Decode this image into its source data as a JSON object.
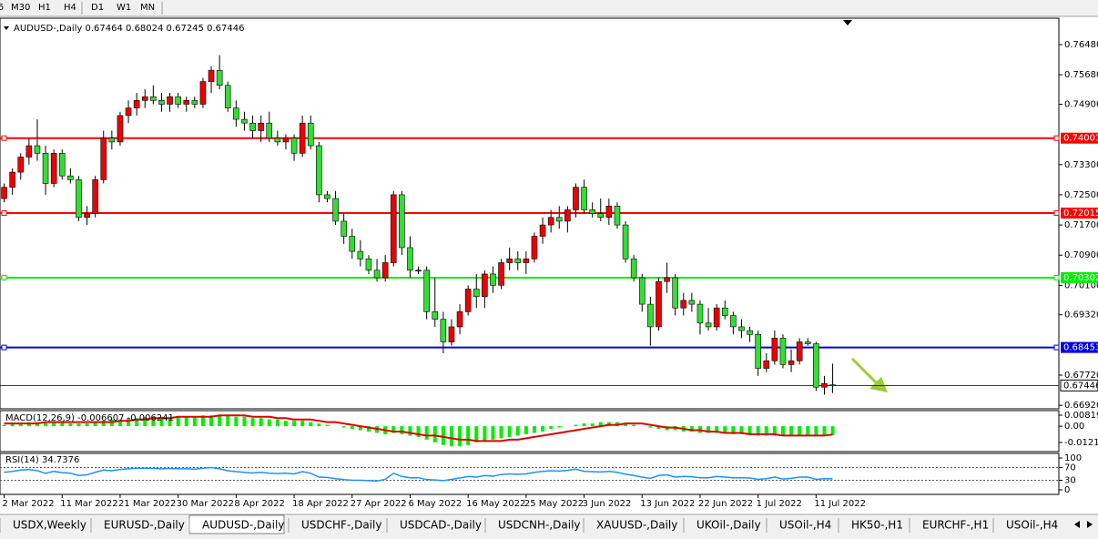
{
  "toolbar": {
    "timeframes": [
      "5",
      "M30",
      "H1",
      "H4",
      "D1",
      "W1",
      "MN"
    ]
  },
  "chart_data": [
    {
      "type": "candlestick",
      "title": "AUDUSD-,Daily  0.67464 0.68024 0.67245 0.67446",
      "up_color": "#ee0000",
      "down_color": "#33dd33",
      "xlim": [
        -0.5,
        127.3
      ],
      "xticks": [
        {
          "value": 0,
          "label": "2 Mar 2022"
        },
        {
          "value": 7,
          "label": "11 Mar 2022"
        },
        {
          "value": 14,
          "label": "21 Mar 2022"
        },
        {
          "value": 21,
          "label": "30 Mar 2022"
        },
        {
          "value": 28,
          "label": "8 Apr 2022"
        },
        {
          "value": 35,
          "label": "18 Apr 2022"
        },
        {
          "value": 42,
          "label": "27 Apr 2022"
        },
        {
          "value": 49,
          "label": "6 May 2022"
        },
        {
          "value": 56,
          "label": "16 May 2022"
        },
        {
          "value": 63,
          "label": "25 May 2022"
        },
        {
          "value": 70,
          "label": "3 Jun 2022"
        },
        {
          "value": 77,
          "label": "13 Jun 2022"
        },
        {
          "value": 84,
          "label": "22 Jun 2022"
        },
        {
          "value": 91,
          "label": "1 Jul 2022"
        },
        {
          "value": 98,
          "label": "11 Jul 2022"
        }
      ],
      "ylim": [
        0.66827,
        0.7718
      ],
      "yticks": [
        {
          "value": 0.7648,
          "label": "0.76480"
        },
        {
          "value": 0.7568,
          "label": "0.75680"
        },
        {
          "value": 0.749,
          "label": "0.74900"
        },
        {
          "value": 0.733,
          "label": "0.73300"
        },
        {
          "value": 0.725,
          "label": "0.72500"
        },
        {
          "value": 0.717,
          "label": "0.71700"
        },
        {
          "value": 0.709,
          "label": "0.70900"
        },
        {
          "value": 0.701,
          "label": "0.70100"
        },
        {
          "value": 0.6932,
          "label": "0.69320"
        },
        {
          "value": 0.6772,
          "label": "0.67720"
        },
        {
          "value": 0.6692,
          "label": "0.66920"
        }
      ],
      "levels": [
        {
          "value": 0.74001,
          "color": "#ff0000"
        },
        {
          "value": 0.72015,
          "color": "#ff0000"
        },
        {
          "value": 0.70302,
          "color": "#00ee00"
        },
        {
          "value": 0.68453,
          "color": "#0000dd"
        }
      ],
      "last_price": 0.67446,
      "candles": [
        [
          0.724,
          0.728,
          0.723,
          0.727
        ],
        [
          0.727,
          0.732,
          0.725,
          0.731
        ],
        [
          0.731,
          0.736,
          0.729,
          0.735
        ],
        [
          0.735,
          0.74,
          0.733,
          0.738
        ],
        [
          0.738,
          0.745,
          0.734,
          0.736
        ],
        [
          0.736,
          0.738,
          0.725,
          0.728
        ],
        [
          0.728,
          0.737,
          0.727,
          0.736
        ],
        [
          0.736,
          0.737,
          0.729,
          0.73
        ],
        [
          0.73,
          0.732,
          0.728,
          0.729
        ],
        [
          0.729,
          0.73,
          0.718,
          0.719
        ],
        [
          0.719,
          0.722,
          0.717,
          0.72
        ],
        [
          0.72,
          0.73,
          0.719,
          0.729
        ],
        [
          0.729,
          0.742,
          0.728,
          0.74
        ],
        [
          0.74,
          0.742,
          0.737,
          0.739
        ],
        [
          0.739,
          0.747,
          0.738,
          0.746
        ],
        [
          0.746,
          0.75,
          0.744,
          0.748
        ],
        [
          0.748,
          0.752,
          0.746,
          0.75
        ],
        [
          0.75,
          0.753,
          0.748,
          0.751
        ],
        [
          0.751,
          0.754,
          0.749,
          0.75
        ],
        [
          0.75,
          0.752,
          0.747,
          0.749
        ],
        [
          0.749,
          0.752,
          0.747,
          0.751
        ],
        [
          0.751,
          0.752,
          0.748,
          0.749
        ],
        [
          0.749,
          0.751,
          0.747,
          0.75
        ],
        [
          0.75,
          0.751,
          0.748,
          0.749
        ],
        [
          0.749,
          0.756,
          0.748,
          0.755
        ],
        [
          0.755,
          0.759,
          0.752,
          0.758
        ],
        [
          0.758,
          0.762,
          0.753,
          0.754
        ],
        [
          0.754,
          0.755,
          0.747,
          0.748
        ],
        [
          0.748,
          0.75,
          0.743,
          0.745
        ],
        [
          0.745,
          0.747,
          0.742,
          0.744
        ],
        [
          0.744,
          0.746,
          0.74,
          0.742
        ],
        [
          0.742,
          0.746,
          0.739,
          0.744
        ],
        [
          0.744,
          0.747,
          0.739,
          0.74
        ],
        [
          0.74,
          0.742,
          0.738,
          0.739
        ],
        [
          0.739,
          0.741,
          0.737,
          0.74
        ],
        [
          0.74,
          0.741,
          0.734,
          0.736
        ],
        [
          0.736,
          0.746,
          0.735,
          0.744
        ],
        [
          0.744,
          0.746,
          0.737,
          0.738
        ],
        [
          0.738,
          0.739,
          0.723,
          0.725
        ],
        [
          0.725,
          0.726,
          0.723,
          0.724
        ],
        [
          0.724,
          0.726,
          0.717,
          0.718
        ],
        [
          0.718,
          0.72,
          0.712,
          0.714
        ],
        [
          0.714,
          0.716,
          0.708,
          0.71
        ],
        [
          0.71,
          0.713,
          0.706,
          0.708
        ],
        [
          0.708,
          0.709,
          0.704,
          0.705
        ],
        [
          0.705,
          0.708,
          0.702,
          0.703
        ],
        [
          0.703,
          0.709,
          0.702,
          0.707
        ],
        [
          0.707,
          0.726,
          0.706,
          0.725
        ],
        [
          0.725,
          0.726,
          0.709,
          0.711
        ],
        [
          0.711,
          0.714,
          0.703,
          0.705
        ],
        [
          0.705,
          0.706,
          0.704,
          0.705
        ],
        [
          0.705,
          0.706,
          0.692,
          0.694
        ],
        [
          0.694,
          0.703,
          0.69,
          0.692
        ],
        [
          0.692,
          0.694,
          0.683,
          0.686
        ],
        [
          0.686,
          0.692,
          0.685,
          0.69
        ],
        [
          0.69,
          0.696,
          0.688,
          0.694
        ],
        [
          0.694,
          0.701,
          0.693,
          0.7
        ],
        [
          0.7,
          0.704,
          0.695,
          0.698
        ],
        [
          0.698,
          0.705,
          0.695,
          0.704
        ],
        [
          0.704,
          0.706,
          0.699,
          0.701
        ],
        [
          0.701,
          0.708,
          0.7,
          0.707
        ],
        [
          0.707,
          0.711,
          0.705,
          0.708
        ],
        [
          0.708,
          0.71,
          0.705,
          0.707
        ],
        [
          0.707,
          0.71,
          0.704,
          0.708
        ],
        [
          0.708,
          0.715,
          0.707,
          0.714
        ],
        [
          0.714,
          0.719,
          0.712,
          0.717
        ],
        [
          0.717,
          0.721,
          0.715,
          0.719
        ],
        [
          0.719,
          0.722,
          0.716,
          0.718
        ],
        [
          0.718,
          0.722,
          0.715,
          0.721
        ],
        [
          0.721,
          0.728,
          0.719,
          0.727
        ],
        [
          0.727,
          0.729,
          0.72,
          0.721
        ],
        [
          0.721,
          0.723,
          0.719,
          0.72
        ],
        [
          0.72,
          0.724,
          0.718,
          0.719
        ],
        [
          0.719,
          0.724,
          0.717,
          0.722
        ],
        [
          0.722,
          0.723,
          0.716,
          0.717
        ],
        [
          0.717,
          0.718,
          0.707,
          0.708
        ],
        [
          0.708,
          0.709,
          0.702,
          0.703
        ],
        [
          0.703,
          0.704,
          0.694,
          0.696
        ],
        [
          0.696,
          0.698,
          0.685,
          0.69
        ],
        [
          0.69,
          0.703,
          0.689,
          0.702
        ],
        [
          0.702,
          0.707,
          0.699,
          0.703
        ],
        [
          0.703,
          0.704,
          0.693,
          0.695
        ],
        [
          0.695,
          0.699,
          0.693,
          0.697
        ],
        [
          0.697,
          0.699,
          0.694,
          0.696
        ],
        [
          0.696,
          0.697,
          0.688,
          0.691
        ],
        [
          0.691,
          0.695,
          0.689,
          0.69
        ],
        [
          0.69,
          0.696,
          0.689,
          0.695
        ],
        [
          0.695,
          0.697,
          0.692,
          0.693
        ],
        [
          0.693,
          0.694,
          0.688,
          0.69
        ],
        [
          0.69,
          0.692,
          0.687,
          0.689
        ],
        [
          0.689,
          0.69,
          0.686,
          0.688
        ],
        [
          0.688,
          0.689,
          0.677,
          0.679
        ],
        [
          0.679,
          0.683,
          0.678,
          0.681
        ],
        [
          0.681,
          0.689,
          0.68,
          0.687
        ],
        [
          0.687,
          0.688,
          0.679,
          0.68
        ],
        [
          0.68,
          0.684,
          0.678,
          0.681
        ],
        [
          0.681,
          0.687,
          0.68,
          0.686
        ],
        [
          0.686,
          0.687,
          0.685,
          0.6855
        ],
        [
          0.6855,
          0.686,
          0.673,
          0.674
        ],
        [
          0.674,
          0.677,
          0.672,
          0.675
        ],
        [
          0.67464,
          0.68024,
          0.67245,
          0.67446
        ]
      ]
    },
    {
      "type": "macd",
      "title": "MACD(12,26,9) -0.006607 -0.006241",
      "color": "#00ee00",
      "signal_color": "#dd0000",
      "ylim": [
        -0.0189,
        0.01158
      ],
      "yticks": [
        0.00819,
        {
          "value": 0,
          "label": "0.00"
        },
        -0.01212
      ],
      "values": [
        0.001,
        0.002,
        0.002,
        0.003,
        0.003,
        0.003,
        0.003,
        0.003,
        0.002,
        0.002,
        0.002,
        0.003,
        0.004,
        0.005,
        0.005,
        0.006,
        0.006,
        0.007,
        0.007,
        0.007,
        0.007,
        0.007,
        0.007,
        0.007,
        0.008,
        0.008,
        0.008,
        0.008,
        0.007,
        0.007,
        0.006,
        0.006,
        0.005,
        0.005,
        0.004,
        0.004,
        0.004,
        0.003,
        0.002,
        0.001,
        0,
        -0.001,
        -0.002,
        -0.003,
        -0.004,
        -0.005,
        -0.006,
        -0.005,
        -0.006,
        -0.007,
        -0.008,
        -0.01,
        -0.012,
        -0.014,
        -0.015,
        -0.015,
        -0.014,
        -0.012,
        -0.011,
        -0.01,
        -0.009,
        -0.008,
        -0.007,
        -0.006,
        -0.005,
        -0.004,
        -0.002,
        -0.001,
        0,
        0.001,
        0.002,
        0.002,
        0.003,
        0.003,
        0.003,
        0.002,
        0.001,
        0,
        -0.001,
        -0.002,
        -0.003,
        -0.003,
        -0.004,
        -0.004,
        -0.005,
        -0.005,
        -0.005,
        -0.005,
        -0.006,
        -0.006,
        -0.006,
        -0.007,
        -0.007,
        -0.007,
        -0.007,
        -0.007,
        -0.007,
        -0.007,
        -0.007,
        -0.007,
        -0.006607
      ],
      "signal": [
        0.002,
        0.002,
        0.002,
        0.002,
        0.002,
        0.003,
        0.003,
        0.003,
        0.003,
        0.003,
        0.003,
        0.003,
        0.003,
        0.003,
        0.004,
        0.004,
        0.005,
        0.005,
        0.006,
        0.006,
        0.006,
        0.007,
        0.007,
        0.007,
        0.007,
        0.007,
        0.008,
        0.008,
        0.008,
        0.008,
        0.007,
        0.007,
        0.007,
        0.006,
        0.006,
        0.005,
        0.005,
        0.005,
        0.004,
        0.003,
        0.003,
        0.002,
        0.001,
        0,
        -0.001,
        -0.002,
        -0.003,
        -0.004,
        -0.004,
        -0.005,
        -0.006,
        -0.007,
        -0.007,
        -0.008,
        -0.009,
        -0.01,
        -0.01,
        -0.011,
        -0.011,
        -0.011,
        -0.011,
        -0.01,
        -0.01,
        -0.009,
        -0.008,
        -0.007,
        -0.006,
        -0.005,
        -0.004,
        -0.003,
        -0.002,
        -0.001,
        0,
        0.001,
        0.001,
        0.002,
        0.002,
        0.002,
        0.001,
        0,
        -0.001,
        -0.001,
        -0.002,
        -0.003,
        -0.003,
        -0.004,
        -0.004,
        -0.005,
        -0.005,
        -0.005,
        -0.006,
        -0.006,
        -0.006,
        -0.006,
        -0.007,
        -0.007,
        -0.007,
        -0.007,
        -0.007,
        -0.007,
        -0.006241
      ]
    },
    {
      "type": "line",
      "title": "RSI(14) 34.7376",
      "color": "#1e90ff",
      "ylim": [
        -14.3,
        114.3
      ],
      "yticks": [
        100,
        70,
        30,
        0
      ],
      "dotted": [
        70,
        30
      ],
      "values": [
        55,
        58,
        62,
        64,
        60,
        52,
        58,
        54,
        52,
        45,
        47,
        55,
        62,
        60,
        64,
        66,
        68,
        68,
        67,
        66,
        67,
        66,
        66,
        65,
        68,
        70,
        66,
        60,
        57,
        55,
        53,
        55,
        52,
        51,
        52,
        50,
        57,
        52,
        40,
        39,
        35,
        32,
        30,
        30,
        29,
        28,
        33,
        52,
        42,
        38,
        38,
        32,
        31,
        29,
        33,
        37,
        42,
        40,
        45,
        43,
        48,
        50,
        49,
        50,
        55,
        58,
        60,
        59,
        61,
        65,
        58,
        57,
        56,
        58,
        55,
        49,
        45,
        40,
        36,
        45,
        47,
        40,
        42,
        41,
        38,
        38,
        42,
        40,
        38,
        38,
        37,
        33,
        35,
        40,
        34,
        36,
        40,
        40,
        33,
        35,
        34.7376
      ]
    }
  ],
  "tabs": [
    "USDX,Weekly",
    "EURUSD-,Daily",
    "AUDUSD-,Daily",
    "USDCHF-,Daily",
    "USDCAD-,Daily",
    "USDCNH-,Daily",
    "XAUUSD-,Daily",
    "UKOil-,Daily",
    "USOil-,H4",
    "HK50-,H1",
    "EURCHF-,H1",
    "USOil-,H4"
  ],
  "active_tab": "AUDUSD-,Daily"
}
